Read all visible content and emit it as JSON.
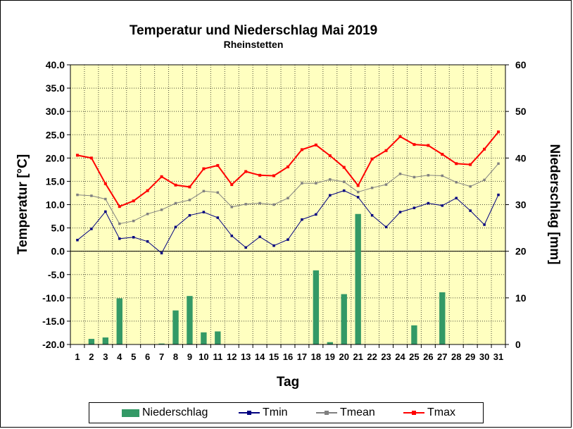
{
  "chart_data": {
    "type": "line",
    "title": "Temperatur und Niederschlag Mai 2019",
    "subtitle": "Rheinstetten",
    "xlabel": "Tag",
    "ylabel": "Temperatur [°C]",
    "y2label": "Niederschlag [mm]",
    "categories": [
      "1",
      "2",
      "3",
      "4",
      "5",
      "6",
      "7",
      "8",
      "9",
      "10",
      "11",
      "12",
      "13",
      "14",
      "15",
      "16",
      "17",
      "18",
      "19",
      "20",
      "21",
      "22",
      "23",
      "24",
      "25",
      "26",
      "27",
      "28",
      "29",
      "30",
      "31"
    ],
    "ylim": [
      -20,
      40
    ],
    "y2lim": [
      0,
      60
    ],
    "yticks": [
      "40.0",
      "35.0",
      "30.0",
      "25.0",
      "20.0",
      "15.0",
      "10.0",
      "5.0",
      "0.0",
      "-5.0",
      "-10.0",
      "-15.0",
      "-20.0"
    ],
    "y2ticks": [
      "60",
      "50",
      "40",
      "30",
      "20",
      "10",
      "0"
    ],
    "background_color": "#ffffc0",
    "grid": true,
    "legend_position": "bottom",
    "series": [
      {
        "name": "Niederschlag",
        "type": "bar",
        "axis": "y2",
        "color": "#339966",
        "values": [
          0,
          1.2,
          1.5,
          9.9,
          0,
          0,
          0.2,
          7.3,
          10.4,
          2.6,
          2.8,
          0,
          0,
          0,
          0,
          0,
          0,
          15.9,
          0.5,
          10.8,
          28.0,
          0,
          0,
          0,
          4.1,
          0,
          11.2,
          0,
          0.1,
          0,
          0
        ]
      },
      {
        "name": "Tmin",
        "type": "line",
        "axis": "y",
        "color": "#000080",
        "values": [
          2.4,
          4.8,
          8.5,
          2.7,
          3.0,
          2.1,
          -0.4,
          5.2,
          7.7,
          8.4,
          7.2,
          3.3,
          0.8,
          3.1,
          1.2,
          2.5,
          6.8,
          7.9,
          12.0,
          13.0,
          11.6,
          7.7,
          5.2,
          8.4,
          9.3,
          10.3,
          9.8,
          11.4,
          8.7,
          5.7,
          12.1
        ]
      },
      {
        "name": "Tmean",
        "type": "line",
        "axis": "y",
        "color": "#808080",
        "values": [
          12.1,
          11.9,
          11.2,
          5.9,
          6.5,
          8.0,
          8.9,
          10.3,
          11.0,
          12.9,
          12.6,
          9.5,
          10.1,
          10.3,
          10.0,
          11.4,
          14.6,
          14.6,
          15.4,
          14.9,
          12.7,
          13.6,
          14.3,
          16.6,
          15.9,
          16.3,
          16.2,
          14.8,
          13.9,
          15.3,
          18.8
        ]
      },
      {
        "name": "Tmax",
        "type": "line",
        "axis": "y",
        "color": "#ff0000",
        "values": [
          20.6,
          20.0,
          14.5,
          9.6,
          10.8,
          13.0,
          16.0,
          14.2,
          13.8,
          17.7,
          18.4,
          14.3,
          17.1,
          16.3,
          16.2,
          18.1,
          21.8,
          22.8,
          20.5,
          18.0,
          14.1,
          19.8,
          21.6,
          24.6,
          22.9,
          22.7,
          20.8,
          18.8,
          18.6,
          21.9,
          25.6
        ]
      }
    ]
  }
}
